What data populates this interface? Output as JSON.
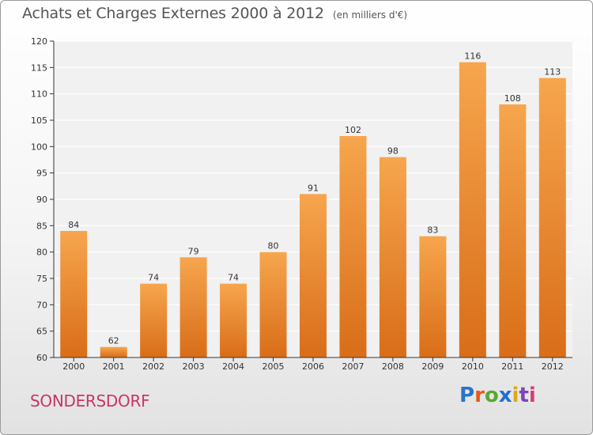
{
  "header": {
    "title": "Achats et Charges Externes 2000 à 2012",
    "subtitle": "(en milliers d'€)"
  },
  "footer": {
    "commune": "SONDERSDORF",
    "logo_text": "Proxiti",
    "logo_colors": [
      "#2a73c8",
      "#e8591a",
      "#59a832",
      "#1f6fd1",
      "#e0a61a",
      "#7b49b5",
      "#d93a7a"
    ]
  },
  "colors": {
    "bar_top": "#f6a64e",
    "bar_bottom": "#d96d18",
    "axis": "#333333",
    "grid": "#ffffff",
    "label": "#333333"
  },
  "chart_data": {
    "type": "bar",
    "categories": [
      "2000",
      "2001",
      "2002",
      "2003",
      "2004",
      "2005",
      "2006",
      "2007",
      "2008",
      "2009",
      "2010",
      "2011",
      "2012"
    ],
    "values": [
      84,
      62,
      74,
      79,
      74,
      80,
      91,
      102,
      98,
      83,
      116,
      108,
      113
    ],
    "ylim": [
      60,
      120
    ],
    "yticks": [
      60,
      65,
      70,
      75,
      80,
      85,
      90,
      95,
      100,
      105,
      110,
      115,
      120
    ],
    "grid": true,
    "data_labels": true
  }
}
